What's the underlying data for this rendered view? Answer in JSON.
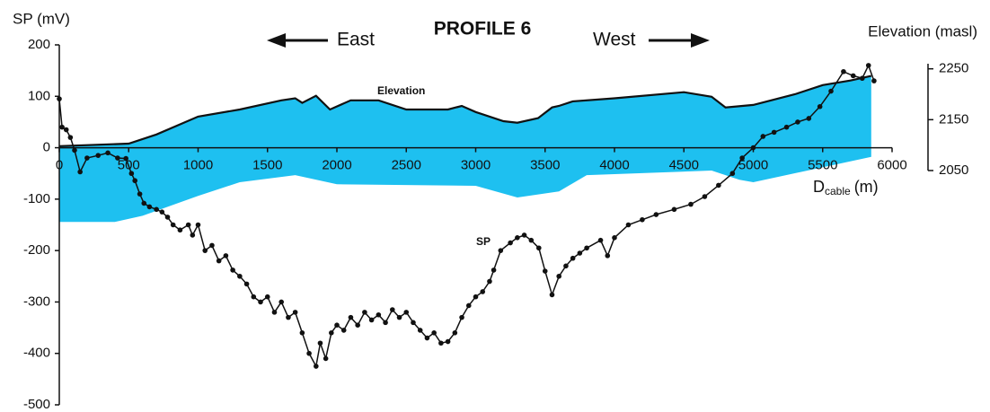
{
  "chart_data": {
    "type": "line",
    "title": "PROFILE 6",
    "title_color": "#1a1aff",
    "ylabel": "SP (mV)",
    "y2label": "Elevation (masl)",
    "xlabel": {
      "main": "D",
      "sub": "cable",
      "unit": "(m)"
    },
    "direction_left": "East",
    "direction_right": "West",
    "xlim": [
      0,
      6000
    ],
    "xticks": [
      0,
      500,
      1000,
      1500,
      2000,
      2500,
      3000,
      3500,
      4000,
      4500,
      5000,
      5500,
      6000
    ],
    "ylim": [
      -500,
      200
    ],
    "yticks": [
      -500,
      -400,
      -300,
      -200,
      -100,
      0,
      100,
      200
    ],
    "y2lim": [
      2050,
      2260
    ],
    "y2ticks": [
      2050,
      2150,
      2250
    ],
    "series": [
      {
        "name": "SP",
        "color": "#111111",
        "x": [
          0,
          20,
          50,
          80,
          110,
          150,
          200,
          280,
          350,
          420,
          480,
          520,
          545,
          580,
          610,
          650,
          700,
          740,
          780,
          820,
          870,
          930,
          960,
          1000,
          1050,
          1100,
          1150,
          1200,
          1250,
          1300,
          1350,
          1400,
          1450,
          1500,
          1550,
          1600,
          1650,
          1700,
          1750,
          1800,
          1850,
          1880,
          1920,
          1960,
          2000,
          2050,
          2100,
          2150,
          2200,
          2250,
          2300,
          2350,
          2400,
          2450,
          2500,
          2550,
          2600,
          2650,
          2700,
          2750,
          2800,
          2850,
          2900,
          2950,
          3000,
          3050,
          3100,
          3130,
          3180,
          3250,
          3300,
          3350,
          3400,
          3455,
          3500,
          3550,
          3600,
          3650,
          3700,
          3750,
          3800,
          3900,
          3950,
          4000,
          4100,
          4200,
          4300,
          4430,
          4550,
          4650,
          4750,
          4850,
          4920,
          5000,
          5070,
          5150,
          5240,
          5320,
          5400,
          5480,
          5560,
          5650,
          5720,
          5785,
          5830,
          5870
        ],
        "values": [
          95,
          40,
          35,
          20,
          -5,
          -47,
          -20,
          -15,
          -10,
          -20,
          -21,
          -50,
          -64,
          -90,
          -108,
          -115,
          -120,
          -125,
          -135,
          -150,
          -160,
          -150,
          -170,
          -150,
          -200,
          -190,
          -220,
          -210,
          -238,
          -250,
          -265,
          -290,
          -300,
          -290,
          -320,
          -300,
          -330,
          -320,
          -360,
          -400,
          -425,
          -380,
          -410,
          -360,
          -345,
          -355,
          -330,
          -345,
          -320,
          -335,
          -325,
          -340,
          -315,
          -330,
          -320,
          -340,
          -355,
          -370,
          -360,
          -380,
          -377,
          -360,
          -330,
          -307,
          -290,
          -280,
          -260,
          -238,
          -200,
          -185,
          -175,
          -170,
          -180,
          -195,
          -240,
          -286,
          -250,
          -230,
          -215,
          -205,
          -195,
          -180,
          -210,
          -175,
          -150,
          -140,
          -130,
          -120,
          -110,
          -95,
          -73,
          -50,
          -20,
          0,
          22,
          30,
          40,
          50,
          57,
          80,
          110,
          148,
          140,
          135,
          160,
          130
        ]
      },
      {
        "name": "Elevation",
        "color": "#111111",
        "fill": "#1ec0f0",
        "axis": "y2",
        "x": [
          0,
          500,
          700,
          1000,
          1300,
          1600,
          1700,
          1750,
          1850,
          1950,
          2100,
          2300,
          2500,
          2800,
          2900,
          3000,
          3200,
          3300,
          3450,
          3550,
          3600,
          3700,
          4000,
          4500,
          4700,
          4800,
          5000,
          5300,
          5500,
          5700,
          5850
        ],
        "values": [
          2098,
          2103,
          2121,
          2156,
          2170,
          2188,
          2192,
          2183,
          2197,
          2170,
          2188,
          2188,
          2170,
          2170,
          2177,
          2165,
          2147,
          2144,
          2153,
          2174,
          2177,
          2186,
          2192,
          2204,
          2195,
          2174,
          2179,
          2200,
          2218,
          2227,
          2236
        ],
        "base_x": [
          0,
          400,
          600,
          1000,
          1300,
          1700,
          2000,
          3000,
          3300,
          3600,
          3800,
          4700,
          4900,
          5000,
          5850
        ],
        "base": [
          1949,
          1949,
          1961,
          2000,
          2027,
          2041,
          2023,
          2020,
          1997,
          2009,
          2041,
          2050,
          2032,
          2027,
          2077
        ]
      }
    ]
  }
}
